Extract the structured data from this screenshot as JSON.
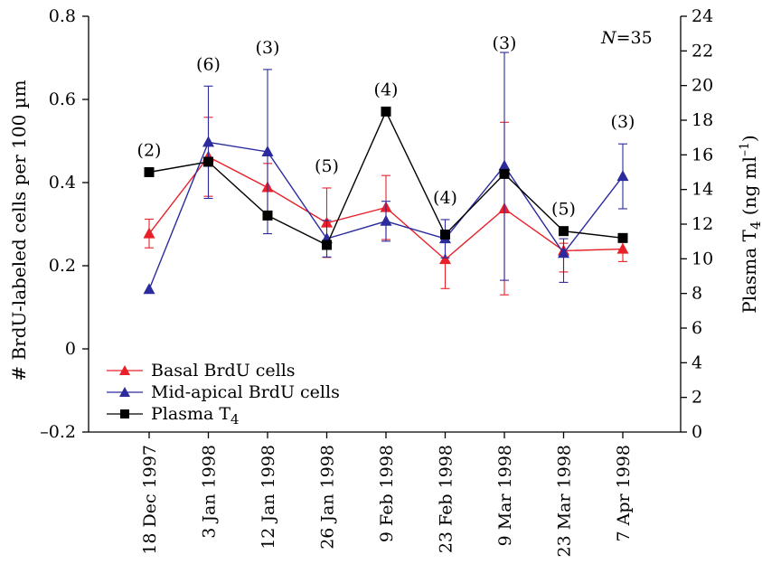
{
  "chart_data": {
    "type": "line",
    "categories": [
      "18 Dec 1997",
      "3 Jan 1998",
      "12 Jan 1998",
      "26 Jan 1998",
      "9 Feb 1998",
      "23 Feb 1998",
      "9 Mar 1998",
      "23 Mar 1998",
      "7 Apr 1998"
    ],
    "sample_sizes": [
      "(2)",
      "(6)",
      "(3)",
      "(5)",
      "(4)",
      "(4)",
      "(3)",
      "(5)",
      "(3)"
    ],
    "annotation": {
      "prefix": "N",
      "suffix": "=35"
    },
    "ylabel": "# BrdU-labeled cells per 100 µm",
    "y2label": {
      "main": "Plasma T",
      "sub": "4",
      "unit_prefix": " (ng ml",
      "unit_sup": "–1",
      "unit_suffix": ")"
    },
    "ylim": [
      -0.2,
      0.8
    ],
    "y2lim": [
      0,
      24
    ],
    "y_ticks": [
      "–0.2",
      "0",
      "0.2",
      "0.4",
      "0.6",
      "0.8"
    ],
    "y2_ticks": [
      "0",
      "2",
      "4",
      "6",
      "8",
      "10",
      "12",
      "14",
      "16",
      "18",
      "20",
      "22",
      "24"
    ],
    "grid": false,
    "legend_position": "bottom-left",
    "series": [
      {
        "name": "Basal BrdU cells",
        "color": "#e8202a",
        "marker": "triangle",
        "axis": "left",
        "values": [
          0.277,
          0.462,
          0.388,
          0.303,
          0.34,
          0.215,
          0.337,
          0.236,
          0.24
        ],
        "err_high": [
          0.312,
          0.557,
          0.446,
          0.387,
          0.417,
          0.285,
          0.545,
          0.254,
          0.262
        ],
        "err_low": [
          0.243,
          0.367,
          0.33,
          0.22,
          0.263,
          0.145,
          0.13,
          0.185,
          0.21
        ]
      },
      {
        "name": "Mid-apical BrdU cells",
        "color": "#2b2b9e",
        "marker": "triangle",
        "axis": "left",
        "values": [
          0.143,
          0.497,
          0.474,
          0.265,
          0.307,
          0.265,
          0.44,
          0.23,
          0.415
        ],
        "err_high": [
          null,
          0.632,
          0.672,
          0.309,
          0.355,
          0.311,
          0.713,
          0.265,
          0.493
        ],
        "err_low": [
          null,
          0.362,
          0.277,
          0.221,
          0.259,
          0.219,
          0.165,
          0.16,
          0.337
        ]
      },
      {
        "name": "Plasma T",
        "name_sub": "4",
        "color": "#000000",
        "marker": "square",
        "axis": "right",
        "values": [
          15.0,
          15.6,
          12.5,
          10.8,
          18.5,
          11.4,
          14.9,
          11.6,
          11.2
        ]
      }
    ]
  }
}
